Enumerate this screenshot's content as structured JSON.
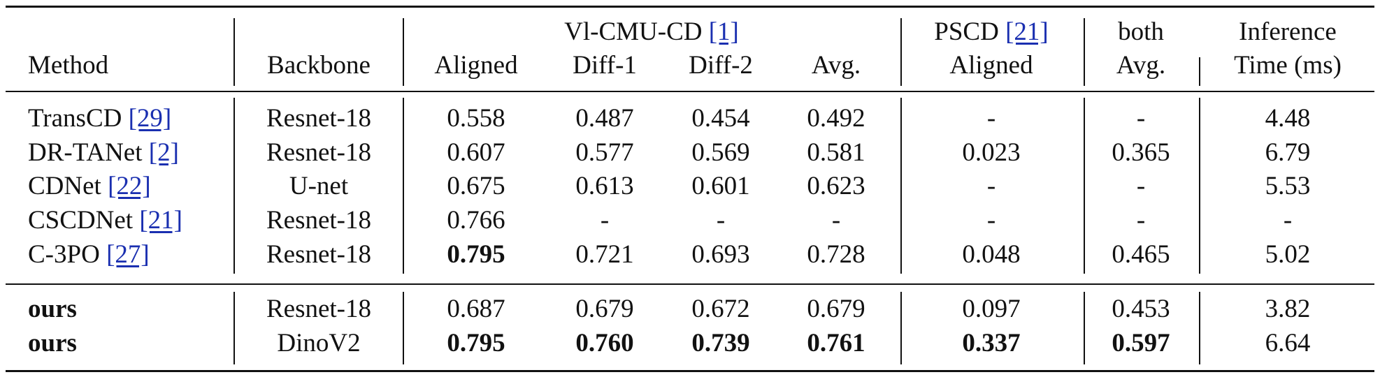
{
  "header": {
    "method": "Method",
    "backbone": "Backbone",
    "vl_group": "Vl-CMU-CD ",
    "vl_cite": "[1]",
    "pscd_group": "PSCD ",
    "pscd_cite": "[21]",
    "both_group": "both",
    "inference_top": "Inference",
    "aligned": "Aligned",
    "diff1": "Diff-1",
    "diff2": "Diff-2",
    "avg": "Avg.",
    "pscd_aligned": "Aligned",
    "both_avg": "Avg.",
    "inference_bottom": "Time (ms)"
  },
  "rows": [
    {
      "method": "TransCD ",
      "cite": "[29]",
      "backbone": "Resnet-18",
      "aligned": "0.558",
      "diff1": "0.487",
      "diff2": "0.454",
      "avg": "0.492",
      "pscd": "-",
      "both": "-",
      "time": "4.48"
    },
    {
      "method": "DR-TANet ",
      "cite": "[2]",
      "backbone": "Resnet-18",
      "aligned": "0.607",
      "diff1": "0.577",
      "diff2": "0.569",
      "avg": "0.581",
      "pscd": "0.023",
      "both": "0.365",
      "time": "6.79"
    },
    {
      "method": "CDNet ",
      "cite": "[22]",
      "backbone": "U-net",
      "aligned": "0.675",
      "diff1": "0.613",
      "diff2": "0.601",
      "avg": "0.623",
      "pscd": "-",
      "both": "-",
      "time": "5.53"
    },
    {
      "method": "CSCDNet ",
      "cite": "[21]",
      "backbone": "Resnet-18",
      "aligned": "0.766",
      "diff1": "-",
      "diff2": "-",
      "avg": "-",
      "pscd": "-",
      "both": "-",
      "time": "-"
    },
    {
      "method": "C-3PO ",
      "cite": "[27]",
      "backbone": "Resnet-18",
      "aligned": "0.795",
      "diff1": "0.721",
      "diff2": "0.693",
      "avg": "0.728",
      "pscd": "0.048",
      "both": "0.465",
      "time": "5.02"
    },
    {
      "method": "ours",
      "cite": "",
      "backbone": "Resnet-18",
      "aligned": "0.687",
      "diff1": "0.679",
      "diff2": "0.672",
      "avg": "0.679",
      "pscd": "0.097",
      "both": "0.453",
      "time": "3.82"
    },
    {
      "method": "ours",
      "cite": "",
      "backbone": "DinoV2",
      "aligned": "0.795",
      "diff1": "0.760",
      "diff2": "0.739",
      "avg": "0.761",
      "pscd": "0.337",
      "both": "0.597",
      "time": "6.64"
    }
  ]
}
